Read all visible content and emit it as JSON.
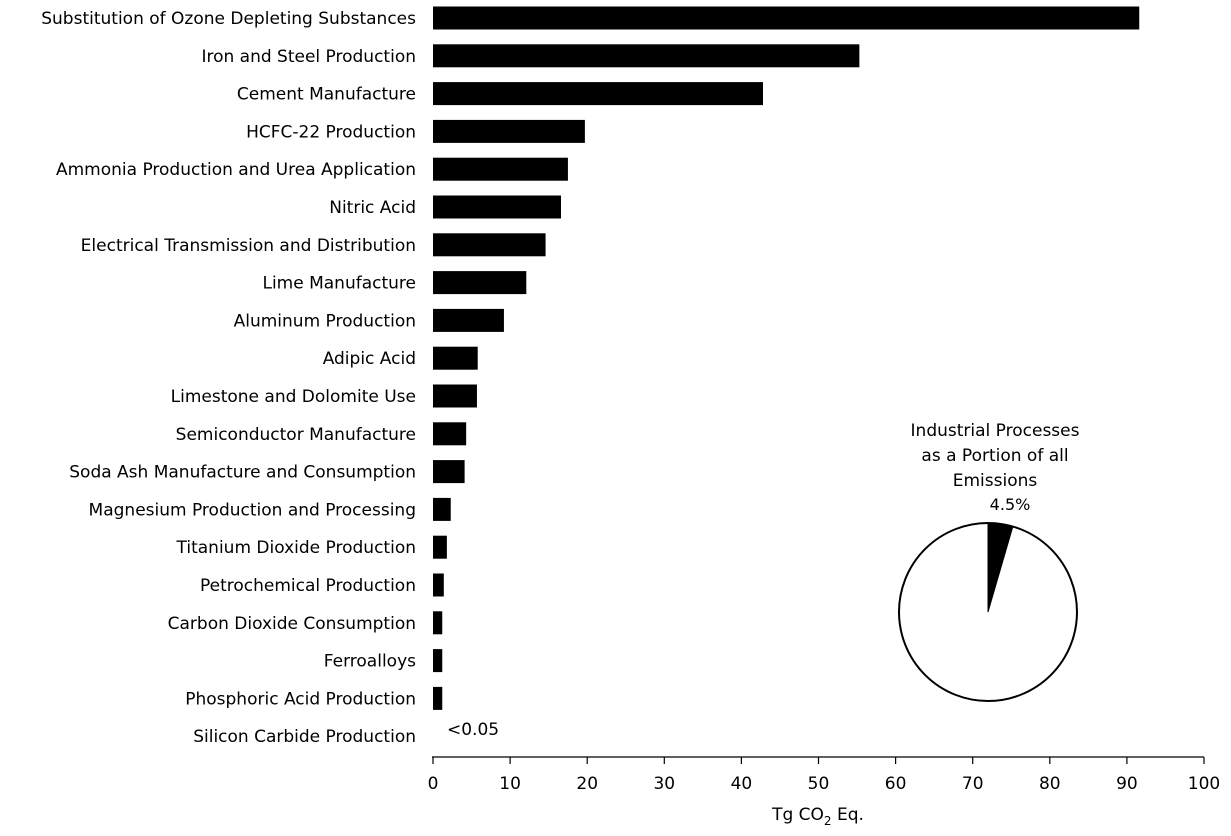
{
  "chart_data": [
    {
      "type": "bar",
      "orientation": "horizontal",
      "categories": [
        "Substitution of Ozone Depleting Substances",
        "Iron and Steel Production",
        "Cement Manufacture",
        "HCFC-22 Production",
        "Ammonia Production and Urea Application",
        "Nitric Acid",
        "Electrical Transmission and Distribution",
        "Lime Manufacture",
        "Aluminum Production",
        "Adipic Acid",
        "Limestone and Dolomite Use",
        "Semiconductor Manufacture",
        "Soda Ash Manufacture and Consumption",
        "Magnesium Production and Processing",
        "Titanium Dioxide Production",
        "Petrochemical Production",
        "Carbon Dioxide Consumption",
        "Ferroalloys",
        "Phosphoric Acid Production",
        "Silicon Carbide Production"
      ],
      "values": [
        91.6,
        55.3,
        42.8,
        19.7,
        17.5,
        16.6,
        14.6,
        12.1,
        9.2,
        5.8,
        5.7,
        4.3,
        4.1,
        2.3,
        1.8,
        1.4,
        1.2,
        1.2,
        1.2,
        0.04
      ],
      "annotations": [
        {
          "category": "Silicon Carbide Production",
          "text": "<0.05"
        }
      ],
      "xlabel_main": "Tg CO",
      "xlabel_sub": "2",
      "xlabel_end": " Eq.",
      "xlim": [
        0,
        100
      ],
      "xticks": [
        0,
        10,
        20,
        30,
        40,
        50,
        60,
        70,
        80,
        90,
        100
      ],
      "bar_color": "#000000",
      "grid": false
    },
    {
      "type": "pie",
      "title_lines": [
        "Industrial Processes",
        "as a Portion of all",
        "Emissions"
      ],
      "slices": [
        {
          "label": "4.5%",
          "value": 4.5,
          "color": "#000000"
        },
        {
          "label": "",
          "value": 95.5,
          "color": "#ffffff"
        }
      ]
    }
  ]
}
